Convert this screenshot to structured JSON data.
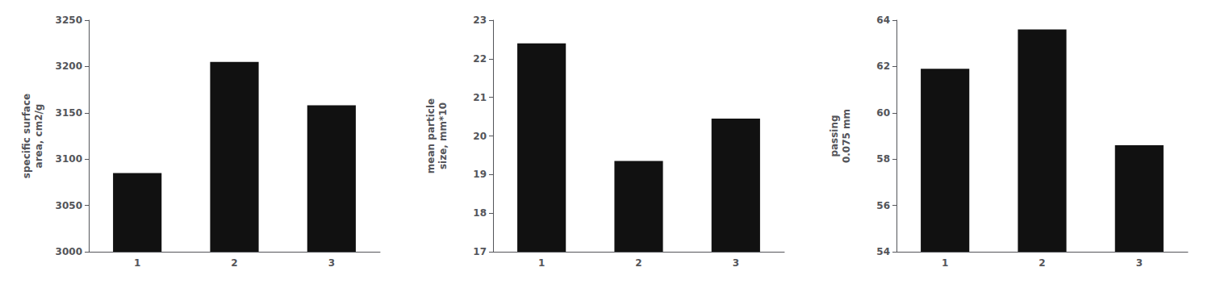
{
  "chart_data": [
    {
      "type": "bar",
      "categories": [
        1,
        2,
        3
      ],
      "values": [
        3085,
        3205,
        3158
      ],
      "ylabel": "specific surface\narea, cm2/g",
      "color": "#111111",
      "ylim": [
        3000,
        3250
      ],
      "yticks": [
        3000,
        3050,
        3100,
        3150,
        3200,
        3250
      ],
      "grid": false
    },
    {
      "type": "bar",
      "categories": [
        1,
        2,
        3
      ],
      "values": [
        22.4,
        19.35,
        20.45
      ],
      "ylabel": "mean particle\nsize, mm*10",
      "color": "#111111",
      "ylim": [
        17,
        23
      ],
      "yticks": [
        17,
        18,
        19,
        20,
        21,
        22,
        23
      ],
      "grid": false
    },
    {
      "type": "bar",
      "categories": [
        1,
        2,
        3
      ],
      "values": [
        61.9,
        63.6,
        58.6
      ],
      "ylabel": "passing\n0.075 mm",
      "color": "#111111",
      "ylim": [
        54,
        64
      ],
      "yticks": [
        54,
        56,
        58,
        60,
        62,
        64
      ],
      "grid": false
    }
  ]
}
